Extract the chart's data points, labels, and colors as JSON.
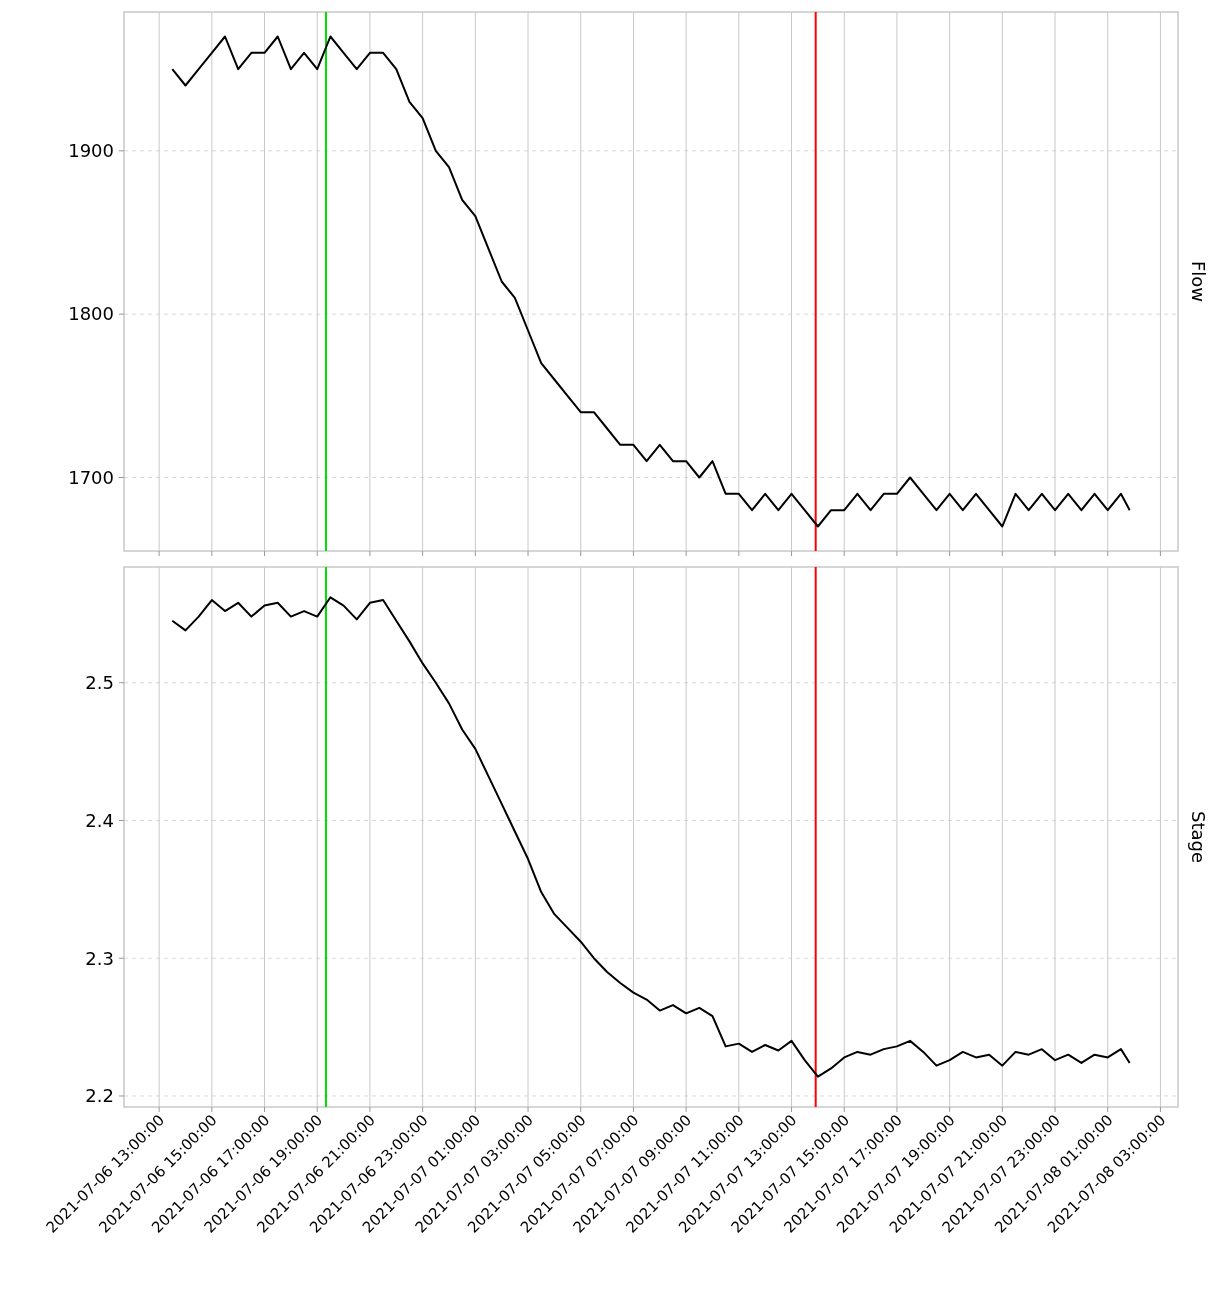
{
  "chart_data": [
    {
      "type": "line",
      "ylabel": "Flow",
      "tick_labels": "y",
      "grid": true,
      "xlim": [
        "2021-07-06T11:40",
        "2021-07-08T03:40"
      ],
      "ylim": [
        1655,
        1985
      ],
      "yticks": [
        1700,
        1800,
        1900
      ],
      "xticks": [
        {
          "value": "2021-07-06T13:00",
          "label": null
        },
        {
          "value": "2021-07-06T15:00",
          "label": null
        },
        {
          "value": "2021-07-06T17:00",
          "label": null
        },
        {
          "value": "2021-07-06T19:00",
          "label": null
        },
        {
          "value": "2021-07-06T21:00",
          "label": null
        },
        {
          "value": "2021-07-06T23:00",
          "label": null
        },
        {
          "value": "2021-07-07T01:00",
          "label": null
        },
        {
          "value": "2021-07-07T03:00",
          "label": null
        },
        {
          "value": "2021-07-07T05:00",
          "label": null
        },
        {
          "value": "2021-07-07T07:00",
          "label": null
        },
        {
          "value": "2021-07-07T09:00",
          "label": null
        },
        {
          "value": "2021-07-07T11:00",
          "label": null
        },
        {
          "value": "2021-07-07T13:00",
          "label": null
        },
        {
          "value": "2021-07-07T15:00",
          "label": null
        },
        {
          "value": "2021-07-07T17:00",
          "label": null
        },
        {
          "value": "2021-07-07T19:00",
          "label": null
        },
        {
          "value": "2021-07-07T21:00",
          "label": null
        },
        {
          "value": "2021-07-07T23:00",
          "label": null
        },
        {
          "value": "2021-07-08T01:00",
          "label": null
        },
        {
          "value": "2021-07-08T03:00",
          "label": null
        }
      ],
      "ref_lines": [
        {
          "axis": "x",
          "value": "2021-07-06T19:20",
          "color": "#00e000"
        },
        {
          "axis": "x",
          "value": "2021-07-07T13:55",
          "color": "#ff0000"
        }
      ],
      "x": [
        "2021-07-06T13:30",
        "2021-07-06T14:00",
        "2021-07-06T14:30",
        "2021-07-06T15:00",
        "2021-07-06T15:30",
        "2021-07-06T16:00",
        "2021-07-06T16:30",
        "2021-07-06T17:00",
        "2021-07-06T17:30",
        "2021-07-06T18:00",
        "2021-07-06T18:30",
        "2021-07-06T19:00",
        "2021-07-06T19:30",
        "2021-07-06T20:00",
        "2021-07-06T20:30",
        "2021-07-06T21:00",
        "2021-07-06T21:30",
        "2021-07-06T22:00",
        "2021-07-06T22:30",
        "2021-07-06T23:00",
        "2021-07-06T23:30",
        "2021-07-07T00:00",
        "2021-07-07T00:30",
        "2021-07-07T01:00",
        "2021-07-07T01:30",
        "2021-07-07T02:00",
        "2021-07-07T02:30",
        "2021-07-07T03:00",
        "2021-07-07T03:30",
        "2021-07-07T04:00",
        "2021-07-07T04:30",
        "2021-07-07T05:00",
        "2021-07-07T05:30",
        "2021-07-07T06:00",
        "2021-07-07T06:30",
        "2021-07-07T07:00",
        "2021-07-07T07:30",
        "2021-07-07T08:00",
        "2021-07-07T08:30",
        "2021-07-07T09:00",
        "2021-07-07T09:30",
        "2021-07-07T10:00",
        "2021-07-07T10:30",
        "2021-07-07T11:00",
        "2021-07-07T11:30",
        "2021-07-07T12:00",
        "2021-07-07T12:30",
        "2021-07-07T13:00",
        "2021-07-07T13:30",
        "2021-07-07T14:00",
        "2021-07-07T14:30",
        "2021-07-07T15:00",
        "2021-07-07T15:30",
        "2021-07-07T16:00",
        "2021-07-07T16:30",
        "2021-07-07T17:00",
        "2021-07-07T17:30",
        "2021-07-07T18:00",
        "2021-07-07T18:30",
        "2021-07-07T19:00",
        "2021-07-07T19:30",
        "2021-07-07T20:00",
        "2021-07-07T20:30",
        "2021-07-07T21:00",
        "2021-07-07T21:30",
        "2021-07-07T22:00",
        "2021-07-07T22:30",
        "2021-07-07T23:00",
        "2021-07-07T23:30",
        "2021-07-08T00:00",
        "2021-07-08T00:30",
        "2021-07-08T01:00",
        "2021-07-08T01:30",
        "2021-07-08T01:50"
      ],
      "series": [
        {
          "color": "#000000",
          "values": [
            1950,
            1940,
            1950,
            1960,
            1970,
            1950,
            1960,
            1960,
            1970,
            1950,
            1960,
            1950,
            1970,
            1960,
            1950,
            1960,
            1960,
            1950,
            1930,
            1920,
            1900,
            1890,
            1870,
            1860,
            1840,
            1820,
            1810,
            1790,
            1770,
            1760,
            1750,
            1740,
            1740,
            1730,
            1720,
            1720,
            1710,
            1720,
            1710,
            1710,
            1700,
            1710,
            1690,
            1690,
            1680,
            1690,
            1680,
            1690,
            1680,
            1670,
            1680,
            1680,
            1690,
            1680,
            1690,
            1690,
            1700,
            1690,
            1680,
            1690,
            1680,
            1690,
            1680,
            1670,
            1690,
            1680,
            1690,
            1680,
            1690,
            1680,
            1690,
            1680,
            1690,
            1680
          ]
        }
      ]
    },
    {
      "type": "line",
      "ylabel": "Stage",
      "grid": true,
      "xlim": [
        "2021-07-06T11:40",
        "2021-07-08T03:40"
      ],
      "ylim": [
        2.192,
        2.584
      ],
      "yticks": [
        2.2,
        2.3,
        2.4,
        2.5
      ],
      "xticks": [
        {
          "value": "2021-07-06T13:00",
          "label": "2021-07-06 13:00:00"
        },
        {
          "value": "2021-07-06T15:00",
          "label": "2021-07-06 15:00:00"
        },
        {
          "value": "2021-07-06T17:00",
          "label": "2021-07-06 17:00:00"
        },
        {
          "value": "2021-07-06T19:00",
          "label": "2021-07-06 19:00:00"
        },
        {
          "value": "2021-07-06T21:00",
          "label": "2021-07-06 21:00:00"
        },
        {
          "value": "2021-07-06T23:00",
          "label": "2021-07-06 23:00:00"
        },
        {
          "value": "2021-07-07T01:00",
          "label": "2021-07-07 01:00:00"
        },
        {
          "value": "2021-07-07T03:00",
          "label": "2021-07-07 03:00:00"
        },
        {
          "value": "2021-07-07T05:00",
          "label": "2021-07-07 05:00:00"
        },
        {
          "value": "2021-07-07T07:00",
          "label": "2021-07-07 07:00:00"
        },
        {
          "value": "2021-07-07T09:00",
          "label": "2021-07-07 09:00:00"
        },
        {
          "value": "2021-07-07T11:00",
          "label": "2021-07-07 11:00:00"
        },
        {
          "value": "2021-07-07T13:00",
          "label": "2021-07-07 13:00:00"
        },
        {
          "value": "2021-07-07T15:00",
          "label": "2021-07-07 15:00:00"
        },
        {
          "value": "2021-07-07T17:00",
          "label": "2021-07-07 17:00:00"
        },
        {
          "value": "2021-07-07T19:00",
          "label": "2021-07-07 19:00:00"
        },
        {
          "value": "2021-07-07T21:00",
          "label": "2021-07-07 21:00:00"
        },
        {
          "value": "2021-07-07T23:00",
          "label": "2021-07-07 23:00:00"
        },
        {
          "value": "2021-07-08T01:00",
          "label": "2021-07-08 01:00:00"
        },
        {
          "value": "2021-07-08T03:00",
          "label": "2021-07-08 03:00:00"
        }
      ],
      "ref_lines": [
        {
          "axis": "x",
          "value": "2021-07-06T19:20",
          "color": "#00e000"
        },
        {
          "axis": "x",
          "value": "2021-07-07T13:55",
          "color": "#ff0000"
        }
      ],
      "x": [
        "2021-07-06T13:30",
        "2021-07-06T14:00",
        "2021-07-06T14:30",
        "2021-07-06T15:00",
        "2021-07-06T15:30",
        "2021-07-06T16:00",
        "2021-07-06T16:30",
        "2021-07-06T17:00",
        "2021-07-06T17:30",
        "2021-07-06T18:00",
        "2021-07-06T18:30",
        "2021-07-06T19:00",
        "2021-07-06T19:30",
        "2021-07-06T20:00",
        "2021-07-06T20:30",
        "2021-07-06T21:00",
        "2021-07-06T21:30",
        "2021-07-06T22:00",
        "2021-07-06T22:30",
        "2021-07-06T23:00",
        "2021-07-06T23:30",
        "2021-07-07T00:00",
        "2021-07-07T00:30",
        "2021-07-07T01:00",
        "2021-07-07T01:30",
        "2021-07-07T02:00",
        "2021-07-07T02:30",
        "2021-07-07T03:00",
        "2021-07-07T03:30",
        "2021-07-07T04:00",
        "2021-07-07T04:30",
        "2021-07-07T05:00",
        "2021-07-07T05:30",
        "2021-07-07T06:00",
        "2021-07-07T06:30",
        "2021-07-07T07:00",
        "2021-07-07T07:30",
        "2021-07-07T08:00",
        "2021-07-07T08:30",
        "2021-07-07T09:00",
        "2021-07-07T09:30",
        "2021-07-07T10:00",
        "2021-07-07T10:30",
        "2021-07-07T11:00",
        "2021-07-07T11:30",
        "2021-07-07T12:00",
        "2021-07-07T12:30",
        "2021-07-07T13:00",
        "2021-07-07T13:30",
        "2021-07-07T14:00",
        "2021-07-07T14:30",
        "2021-07-07T15:00",
        "2021-07-07T15:30",
        "2021-07-07T16:00",
        "2021-07-07T16:30",
        "2021-07-07T17:00",
        "2021-07-07T17:30",
        "2021-07-07T18:00",
        "2021-07-07T18:30",
        "2021-07-07T19:00",
        "2021-07-07T19:30",
        "2021-07-07T20:00",
        "2021-07-07T20:30",
        "2021-07-07T21:00",
        "2021-07-07T21:30",
        "2021-07-07T22:00",
        "2021-07-07T22:30",
        "2021-07-07T23:00",
        "2021-07-07T23:30",
        "2021-07-08T00:00",
        "2021-07-08T00:30",
        "2021-07-08T01:00",
        "2021-07-08T01:30",
        "2021-07-08T01:50"
      ],
      "series": [
        {
          "color": "#000000",
          "values": [
            2.545,
            2.538,
            2.548,
            2.56,
            2.552,
            2.558,
            2.548,
            2.556,
            2.558,
            2.548,
            2.552,
            2.548,
            2.562,
            2.556,
            2.546,
            2.558,
            2.56,
            2.545,
            2.53,
            2.514,
            2.5,
            2.485,
            2.466,
            2.452,
            2.432,
            2.412,
            2.392,
            2.372,
            2.348,
            2.332,
            2.322,
            2.312,
            2.3,
            2.29,
            2.282,
            2.275,
            2.27,
            2.262,
            2.266,
            2.26,
            2.264,
            2.258,
            2.236,
            2.238,
            2.232,
            2.237,
            2.233,
            2.24,
            2.226,
            2.214,
            2.22,
            2.228,
            2.232,
            2.23,
            2.234,
            2.236,
            2.24,
            2.232,
            2.222,
            2.226,
            2.232,
            2.228,
            2.23,
            2.222,
            2.232,
            2.23,
            2.234,
            2.226,
            2.23,
            2.224,
            2.23,
            2.228,
            2.234,
            2.224
          ]
        }
      ]
    }
  ]
}
